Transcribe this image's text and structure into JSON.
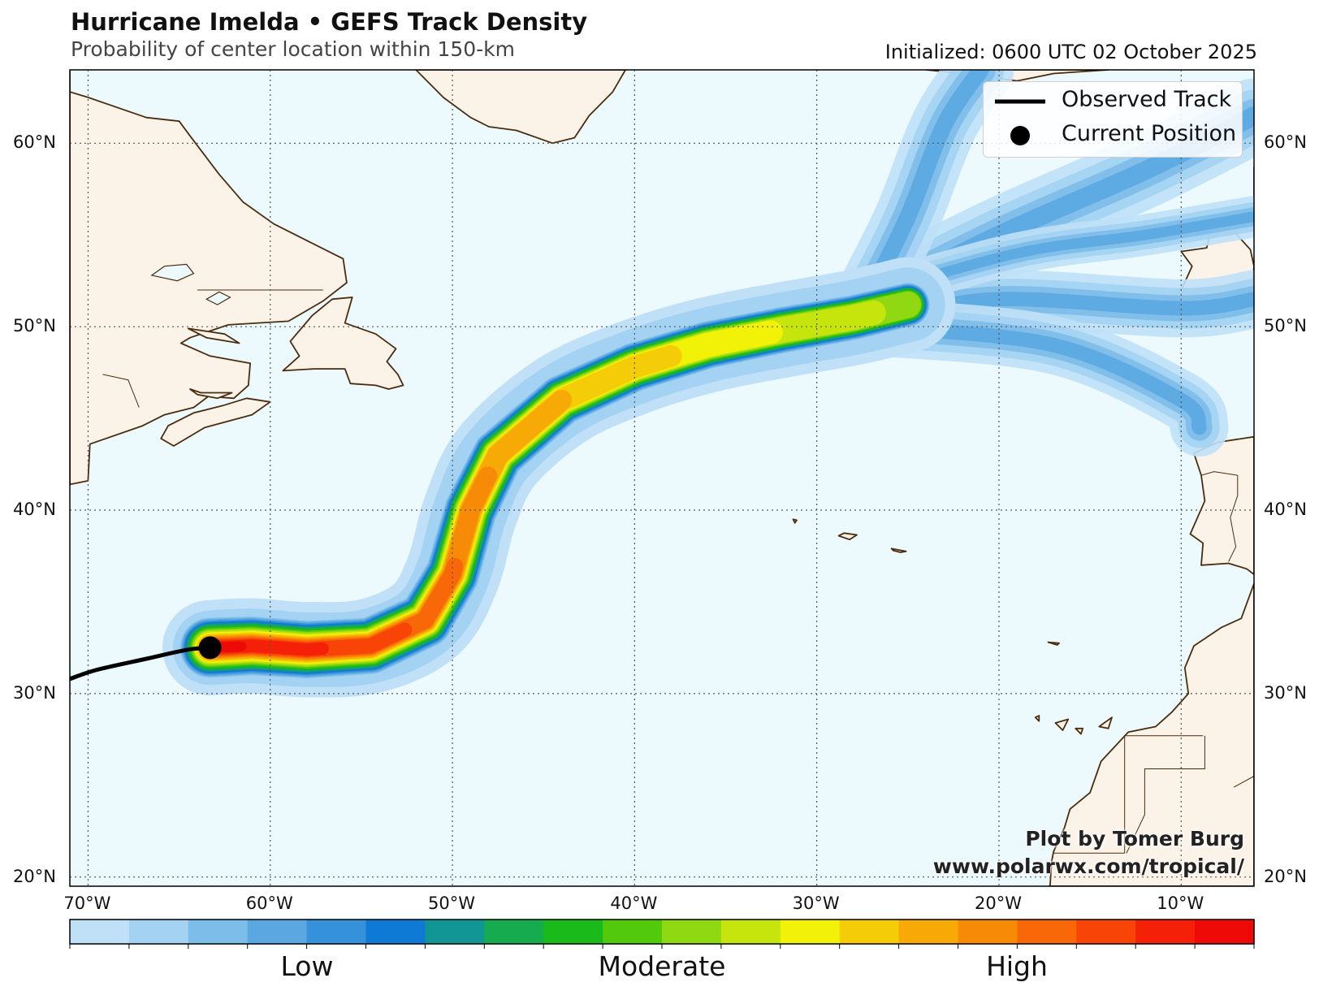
{
  "header": {
    "title": "Hurricane Imelda • GEFS Track Density",
    "subtitle": "Probability of center location within 150-km",
    "initialized": "Initialized: 0600 UTC 02 October 2025"
  },
  "legend": {
    "observed_track": "Observed Track",
    "current_position": "Current Position"
  },
  "credit": {
    "line1": "Plot by Tomer Burg",
    "line2": "www.polarwx.com/tropical/"
  },
  "colorbar": {
    "colors": [
      "#bfe0f7",
      "#a3d2f2",
      "#7dbde9",
      "#5aa7e1",
      "#3591da",
      "#0f7ad6",
      "#129595",
      "#16ab4e",
      "#1bba1b",
      "#53c90c",
      "#8fd812",
      "#c5e50c",
      "#f2f209",
      "#f5cc08",
      "#f7aa05",
      "#f78a06",
      "#f86708",
      "#f84407",
      "#f52008",
      "#ee0b07"
    ],
    "labels": [
      "Low",
      "Moderate",
      "High"
    ]
  },
  "map": {
    "lon_range": [
      -71,
      -6
    ],
    "lat_range": [
      19.5,
      64
    ],
    "ocean_color": "#ecf9fd",
    "land_color": "#fbf3e8",
    "coast_color": "#4a2c0f",
    "lat_ticks": [
      20,
      30,
      40,
      50,
      60
    ],
    "lat_labels": [
      "20°N",
      "30°N",
      "40°N",
      "50°N",
      "60°N"
    ],
    "lon_ticks": [
      -70,
      -60,
      -50,
      -40,
      -30,
      -20,
      -10
    ],
    "lon_labels": [
      "70°W",
      "60°W",
      "50°W",
      "40°W",
      "30°W",
      "20°W",
      "10°W"
    ],
    "observed_track": [
      [
        -71,
        30.8
      ],
      [
        -69.5,
        31.3
      ],
      [
        -66.8,
        31.9
      ],
      [
        -64.5,
        32.4
      ],
      [
        -63.3,
        32.5
      ]
    ],
    "current_position": [
      -63.3,
      32.5
    ],
    "forecast_centerline": [
      [
        -63.3,
        32.5
      ],
      [
        -61,
        32.6
      ],
      [
        -58,
        32.4
      ],
      [
        -54.5,
        32.6
      ],
      [
        -51.5,
        34
      ],
      [
        -50,
        36.5
      ],
      [
        -49,
        40
      ],
      [
        -47.5,
        43
      ],
      [
        -44,
        46
      ],
      [
        -40,
        47.8
      ],
      [
        -36,
        49
      ],
      [
        -32,
        49.8
      ],
      [
        -28,
        50.5
      ],
      [
        -25,
        51.2
      ]
    ],
    "tails": [
      {
        "points": [
          [
            -27,
            51.5
          ],
          [
            -20,
            55
          ],
          [
            -12,
            58.5
          ],
          [
            -6,
            61.5
          ]
        ],
        "width": 4.5
      },
      {
        "points": [
          [
            -26,
            50.5
          ],
          [
            -20,
            51.5
          ],
          [
            -10,
            51
          ],
          [
            -6,
            51.5
          ]
        ],
        "width": 3.5
      },
      {
        "points": [
          [
            -27,
            52
          ],
          [
            -25,
            56
          ],
          [
            -23,
            61
          ],
          [
            -21,
            64
          ]
        ],
        "width": 4
      },
      {
        "points": [
          [
            -27,
            50
          ],
          [
            -17,
            49
          ],
          [
            -10,
            46
          ],
          [
            -9,
            44.5
          ]
        ],
        "width": 3.5
      },
      {
        "points": [
          [
            -28,
            51.5
          ],
          [
            -19,
            54
          ],
          [
            -12,
            55
          ],
          [
            -6,
            56
          ]
        ],
        "width": 2.5
      }
    ]
  }
}
